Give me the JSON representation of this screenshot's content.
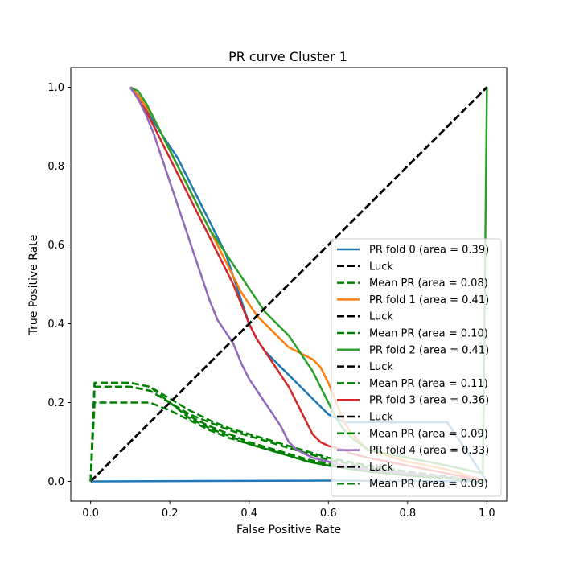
{
  "chart_data": {
    "type": "line",
    "title": "PR curve Cluster 1",
    "xlabel": "False Positive Rate",
    "ylabel": "True Positive Rate",
    "xlim": [
      -0.05,
      1.05
    ],
    "ylim": [
      -0.05,
      1.05
    ],
    "xticks": [
      "0.0",
      "0.2",
      "0.4",
      "0.6",
      "0.8",
      "1.0"
    ],
    "yticks": [
      "0.0",
      "0.2",
      "0.4",
      "0.6",
      "0.8",
      "1.0"
    ],
    "legend_position": "lower-right",
    "series": [
      {
        "name": "PR fold 0 (area = 0.39)",
        "color": "#1f77b4",
        "dash": false,
        "x": [
          0.1,
          0.12,
          0.14,
          0.16,
          0.18,
          0.2,
          0.22,
          0.24,
          0.26,
          0.28,
          0.3,
          0.32,
          0.34,
          0.36,
          0.38,
          0.4,
          0.42,
          0.44,
          0.46,
          0.48,
          0.5,
          0.52,
          0.54,
          0.56,
          0.58,
          0.6,
          0.62,
          0.64,
          0.66,
          0.7,
          0.8,
          0.9,
          1.0,
          0.6,
          0.3,
          0.0
        ],
        "y": [
          1.0,
          0.98,
          0.95,
          0.91,
          0.88,
          0.85,
          0.82,
          0.78,
          0.74,
          0.7,
          0.66,
          0.62,
          0.58,
          0.52,
          0.46,
          0.4,
          0.36,
          0.33,
          0.31,
          0.29,
          0.27,
          0.25,
          0.23,
          0.21,
          0.19,
          0.17,
          0.16,
          0.15,
          0.15,
          0.15,
          0.15,
          0.15,
          0.0,
          0.002,
          0.001,
          0.0
        ]
      },
      {
        "name": "Luck",
        "color": "#000000",
        "dash": true,
        "x": [
          0,
          1
        ],
        "y": [
          0,
          1
        ]
      },
      {
        "name": "Mean PR (area = 0.08)",
        "color": "#008000",
        "dash": true,
        "x": [
          0.0,
          0.01,
          0.05,
          0.1,
          0.15,
          0.2,
          0.25,
          0.3,
          0.35,
          0.4,
          0.45,
          0.5,
          0.55,
          0.6,
          0.7,
          0.8,
          0.9,
          1.0
        ],
        "y": [
          0.0,
          0.2,
          0.2,
          0.2,
          0.2,
          0.18,
          0.155,
          0.13,
          0.11,
          0.095,
          0.08,
          0.065,
          0.05,
          0.04,
          0.025,
          0.015,
          0.008,
          0.0
        ]
      },
      {
        "name": "PR fold 1 (area = 0.41)",
        "color": "#ff7f0e",
        "dash": false,
        "x": [
          0.1,
          0.12,
          0.14,
          0.16,
          0.18,
          0.2,
          0.22,
          0.24,
          0.26,
          0.28,
          0.3,
          0.32,
          0.34,
          0.36,
          0.38,
          0.4,
          0.42,
          0.44,
          0.46,
          0.48,
          0.5,
          0.52,
          0.54,
          0.56,
          0.58,
          0.6,
          0.62,
          0.64,
          0.66,
          0.7,
          0.8,
          0.9,
          1.0
        ],
        "y": [
          1.0,
          0.98,
          0.95,
          0.92,
          0.88,
          0.84,
          0.8,
          0.76,
          0.72,
          0.68,
          0.64,
          0.6,
          0.56,
          0.52,
          0.48,
          0.45,
          0.42,
          0.4,
          0.38,
          0.36,
          0.34,
          0.33,
          0.32,
          0.31,
          0.29,
          0.25,
          0.2,
          0.15,
          0.12,
          0.08,
          0.05,
          0.03,
          0.0
        ]
      },
      {
        "name": "Luck",
        "color": "#000000",
        "dash": true,
        "x": [
          0,
          1
        ],
        "y": [
          0,
          1
        ]
      },
      {
        "name": "Mean PR (area = 0.10)",
        "color": "#008000",
        "dash": true,
        "x": [
          0.0,
          0.01,
          0.05,
          0.1,
          0.15,
          0.2,
          0.25,
          0.3,
          0.35,
          0.4,
          0.45,
          0.5,
          0.55,
          0.6,
          0.7,
          0.8,
          0.9,
          1.0
        ],
        "y": [
          0.0,
          0.24,
          0.24,
          0.24,
          0.23,
          0.2,
          0.17,
          0.15,
          0.13,
          0.115,
          0.1,
          0.085,
          0.07,
          0.055,
          0.035,
          0.02,
          0.01,
          0.0
        ]
      },
      {
        "name": "PR fold 2 (area = 0.41)",
        "color": "#2ca02c",
        "dash": false,
        "x": [
          0.1,
          0.12,
          0.14,
          0.16,
          0.18,
          0.2,
          0.22,
          0.24,
          0.26,
          0.28,
          0.3,
          0.32,
          0.34,
          0.36,
          0.38,
          0.4,
          0.42,
          0.44,
          0.46,
          0.48,
          0.5,
          0.52,
          0.54,
          0.56,
          0.58,
          0.6,
          0.62,
          0.64,
          0.66,
          0.7,
          0.8,
          0.9,
          0.99,
          1.0
        ],
        "y": [
          1.0,
          0.99,
          0.96,
          0.92,
          0.88,
          0.84,
          0.8,
          0.76,
          0.72,
          0.68,
          0.64,
          0.61,
          0.58,
          0.55,
          0.52,
          0.49,
          0.46,
          0.43,
          0.41,
          0.39,
          0.37,
          0.34,
          0.31,
          0.28,
          0.24,
          0.2,
          0.16,
          0.13,
          0.11,
          0.08,
          0.06,
          0.04,
          0.02,
          1.0
        ]
      },
      {
        "name": "Luck",
        "color": "#000000",
        "dash": true,
        "x": [
          0,
          1
        ],
        "y": [
          0,
          1
        ]
      },
      {
        "name": "Mean PR (area = 0.11)",
        "color": "#008000",
        "dash": true,
        "x": [
          0.0,
          0.01,
          0.05,
          0.1,
          0.15,
          0.2,
          0.25,
          0.3,
          0.35,
          0.4,
          0.45,
          0.5,
          0.55,
          0.6,
          0.7,
          0.8,
          0.9,
          1.0
        ],
        "y": [
          0.0,
          0.25,
          0.25,
          0.25,
          0.24,
          0.21,
          0.18,
          0.155,
          0.135,
          0.12,
          0.105,
          0.09,
          0.075,
          0.06,
          0.04,
          0.025,
          0.012,
          0.0
        ]
      },
      {
        "name": "PR fold 3 (area = 0.36)",
        "color": "#d62728",
        "dash": false,
        "x": [
          0.1,
          0.12,
          0.14,
          0.16,
          0.18,
          0.2,
          0.22,
          0.24,
          0.26,
          0.28,
          0.3,
          0.32,
          0.34,
          0.36,
          0.38,
          0.4,
          0.42,
          0.44,
          0.46,
          0.48,
          0.5,
          0.52,
          0.54,
          0.56,
          0.58,
          0.6,
          0.62,
          0.64,
          0.66,
          0.7,
          0.8,
          0.9,
          1.0
        ],
        "y": [
          1.0,
          0.97,
          0.94,
          0.9,
          0.86,
          0.82,
          0.78,
          0.74,
          0.7,
          0.66,
          0.62,
          0.58,
          0.54,
          0.5,
          0.45,
          0.4,
          0.36,
          0.33,
          0.3,
          0.27,
          0.24,
          0.2,
          0.16,
          0.12,
          0.1,
          0.09,
          0.085,
          0.08,
          0.07,
          0.06,
          0.04,
          0.02,
          0.0
        ]
      },
      {
        "name": "Luck",
        "color": "#000000",
        "dash": true,
        "x": [
          0,
          1
        ],
        "y": [
          0,
          1
        ]
      },
      {
        "name": "Mean PR (area = 0.09)",
        "color": "#008000",
        "dash": true,
        "x": [
          0.0,
          0.01,
          0.05,
          0.1,
          0.15,
          0.2,
          0.25,
          0.3,
          0.35,
          0.4,
          0.45,
          0.5,
          0.55,
          0.6,
          0.7,
          0.8,
          0.9,
          1.0
        ],
        "y": [
          0.0,
          0.24,
          0.24,
          0.24,
          0.23,
          0.2,
          0.165,
          0.14,
          0.12,
          0.1,
          0.085,
          0.07,
          0.055,
          0.045,
          0.03,
          0.018,
          0.009,
          0.0
        ]
      },
      {
        "name": "PR fold 4 (area = 0.33)",
        "color": "#9467bd",
        "dash": false,
        "x": [
          0.1,
          0.12,
          0.14,
          0.16,
          0.18,
          0.2,
          0.22,
          0.24,
          0.26,
          0.28,
          0.3,
          0.32,
          0.34,
          0.36,
          0.38,
          0.4,
          0.42,
          0.44,
          0.46,
          0.48,
          0.5,
          0.52,
          0.54,
          0.56,
          0.58,
          0.6,
          0.62,
          0.64,
          0.66,
          0.7,
          0.8,
          0.9,
          1.0
        ],
        "y": [
          1.0,
          0.97,
          0.93,
          0.88,
          0.82,
          0.76,
          0.7,
          0.64,
          0.58,
          0.52,
          0.46,
          0.41,
          0.38,
          0.35,
          0.3,
          0.26,
          0.23,
          0.2,
          0.17,
          0.14,
          0.1,
          0.08,
          0.07,
          0.06,
          0.055,
          0.05,
          0.045,
          0.04,
          0.035,
          0.03,
          0.02,
          0.01,
          0.0
        ]
      },
      {
        "name": "Luck",
        "color": "#000000",
        "dash": true,
        "x": [
          0,
          1
        ],
        "y": [
          0,
          1
        ]
      },
      {
        "name": "Mean PR (area = 0.09)",
        "color": "#008000",
        "dash": true,
        "x": [
          0.0,
          0.01,
          0.05,
          0.1,
          0.15,
          0.2,
          0.25,
          0.3,
          0.35,
          0.4,
          0.45,
          0.5,
          0.55,
          0.6,
          0.7,
          0.8,
          0.9,
          1.0
        ],
        "y": [
          0.0,
          0.25,
          0.25,
          0.25,
          0.24,
          0.2,
          0.16,
          0.135,
          0.115,
          0.095,
          0.08,
          0.065,
          0.05,
          0.04,
          0.025,
          0.015,
          0.008,
          0.0
        ]
      }
    ]
  }
}
